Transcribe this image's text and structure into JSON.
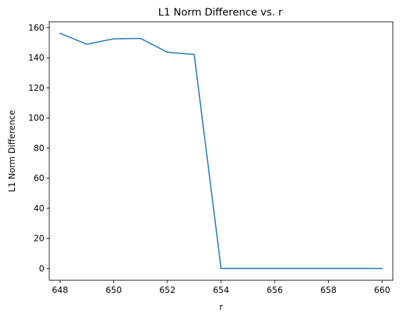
{
  "chart_data": {
    "type": "line",
    "title": "L1 Norm Difference vs. r",
    "xlabel": "r",
    "ylabel": "L1 Norm Difference",
    "xlim": [
      647.6,
      660.4
    ],
    "ylim": [
      -7.8,
      163.9
    ],
    "xticks": [
      648,
      650,
      652,
      654,
      656,
      658,
      660
    ],
    "yticks": [
      0,
      20,
      40,
      60,
      80,
      100,
      120,
      140,
      160
    ],
    "grid": false,
    "legend": "none",
    "series": [
      {
        "color": "#1f77b4",
        "x": [
          648,
          649,
          650,
          651,
          652,
          653,
          654,
          655,
          656,
          657,
          658,
          659,
          660
        ],
        "y": [
          156.3,
          149.0,
          152.6,
          152.9,
          143.7,
          142.2,
          0,
          0,
          0,
          0,
          0,
          0,
          0
        ]
      }
    ]
  }
}
